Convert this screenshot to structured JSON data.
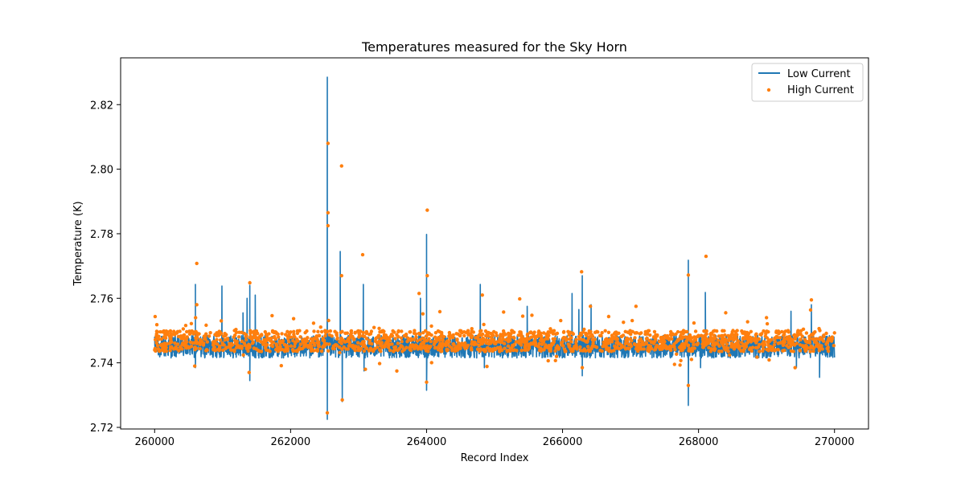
{
  "chart_data": {
    "type": "line",
    "title": "Temperatures measured for the Sky Horn",
    "xlabel": "Record Index",
    "ylabel": "Temperature (K)",
    "xlim": [
      259500,
      270500
    ],
    "ylim": [
      2.7195,
      2.8345
    ],
    "xticks": [
      260000,
      262000,
      264000,
      266000,
      268000,
      270000
    ],
    "yticks": [
      2.72,
      2.74,
      2.76,
      2.78,
      2.8,
      2.82
    ],
    "x_range": [
      260000,
      270000
    ],
    "legend_position": "top-right",
    "grid": false,
    "series": [
      {
        "name": "Low Current",
        "kind": "line",
        "color": "#1f77b4",
        "baseline": 2.7447,
        "noise_band": [
          2.7415,
          2.7485
        ],
        "spikes": [
          {
            "x": 260600,
            "y": 2.7643
          },
          {
            "x": 260600,
            "y": 2.7385
          },
          {
            "x": 260990,
            "y": 2.7638
          },
          {
            "x": 261300,
            "y": 2.7555
          },
          {
            "x": 261360,
            "y": 2.76
          },
          {
            "x": 261400,
            "y": 2.764
          },
          {
            "x": 261400,
            "y": 2.7345
          },
          {
            "x": 261480,
            "y": 2.761
          },
          {
            "x": 262540,
            "y": 2.8285
          },
          {
            "x": 262540,
            "y": 2.7225
          },
          {
            "x": 262730,
            "y": 2.7745
          },
          {
            "x": 262760,
            "y": 2.728
          },
          {
            "x": 263070,
            "y": 2.7643
          },
          {
            "x": 263080,
            "y": 2.7375
          },
          {
            "x": 263910,
            "y": 2.76
          },
          {
            "x": 264000,
            "y": 2.7798
          },
          {
            "x": 264000,
            "y": 2.7315
          },
          {
            "x": 264790,
            "y": 2.7643
          },
          {
            "x": 264850,
            "y": 2.7385
          },
          {
            "x": 265480,
            "y": 2.7575
          },
          {
            "x": 266140,
            "y": 2.7615
          },
          {
            "x": 266240,
            "y": 2.7565
          },
          {
            "x": 266290,
            "y": 2.767
          },
          {
            "x": 266290,
            "y": 2.736
          },
          {
            "x": 266420,
            "y": 2.758
          },
          {
            "x": 267850,
            "y": 2.7718
          },
          {
            "x": 267850,
            "y": 2.7268
          },
          {
            "x": 268100,
            "y": 2.7618
          },
          {
            "x": 268030,
            "y": 2.7385
          },
          {
            "x": 269360,
            "y": 2.756
          },
          {
            "x": 269440,
            "y": 2.7385
          },
          {
            "x": 269660,
            "y": 2.758
          },
          {
            "x": 269780,
            "y": 2.7355
          }
        ]
      },
      {
        "name": "High Current",
        "kind": "scatter",
        "color": "#ff7f0e",
        "baseline": 2.7465,
        "noise_band": [
          2.7435,
          2.75
        ],
        "outliers": [
          {
            "x": 260620,
            "y": 2.7708
          },
          {
            "x": 260620,
            "y": 2.758
          },
          {
            "x": 260590,
            "y": 2.739
          },
          {
            "x": 260980,
            "y": 2.753
          },
          {
            "x": 261400,
            "y": 2.7648
          },
          {
            "x": 261390,
            "y": 2.737
          },
          {
            "x": 262550,
            "y": 2.808
          },
          {
            "x": 262550,
            "y": 2.7865
          },
          {
            "x": 262550,
            "y": 2.7825
          },
          {
            "x": 262540,
            "y": 2.7245
          },
          {
            "x": 262750,
            "y": 2.801
          },
          {
            "x": 262750,
            "y": 2.767
          },
          {
            "x": 262760,
            "y": 2.7285
          },
          {
            "x": 263060,
            "y": 2.7735
          },
          {
            "x": 263100,
            "y": 2.738
          },
          {
            "x": 263890,
            "y": 2.7615
          },
          {
            "x": 264010,
            "y": 2.7873
          },
          {
            "x": 264010,
            "y": 2.767
          },
          {
            "x": 264000,
            "y": 2.734
          },
          {
            "x": 264820,
            "y": 2.761
          },
          {
            "x": 265370,
            "y": 2.7598
          },
          {
            "x": 266280,
            "y": 2.7682
          },
          {
            "x": 266290,
            "y": 2.7385
          },
          {
            "x": 266410,
            "y": 2.7575
          },
          {
            "x": 267080,
            "y": 2.7575
          },
          {
            "x": 267850,
            "y": 2.7672
          },
          {
            "x": 267850,
            "y": 2.733
          },
          {
            "x": 268110,
            "y": 2.773
          },
          {
            "x": 268400,
            "y": 2.7555
          },
          {
            "x": 269000,
            "y": 2.754
          },
          {
            "x": 269660,
            "y": 2.7595
          },
          {
            "x": 269420,
            "y": 2.7385
          }
        ]
      }
    ]
  }
}
